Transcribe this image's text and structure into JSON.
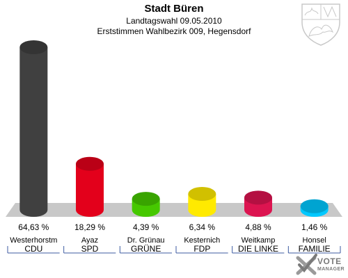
{
  "header": {
    "title": "Stadt Büren",
    "line1": "Landtagswahl 09.05.2010",
    "line2": "Erststimmen Wahlbezirk 009, Hegensdorf"
  },
  "branding": {
    "line1": "VOTE",
    "line2": "MANAGER"
  },
  "colors": {
    "axis": "#c8c8c8",
    "tick_line": "#3c5aa0"
  },
  "chart_data": {
    "type": "bar",
    "categories": [
      "CDU",
      "SPD",
      "GRÜNE",
      "FDP",
      "DIE LINKE",
      "FAMILIE"
    ],
    "candidates": [
      "Westerhorstm",
      "Ayaz",
      "Dr. Grünau",
      "Kesternich",
      "Weitkamp",
      "Honsel"
    ],
    "values": [
      64.63,
      18.29,
      4.39,
      6.34,
      4.88,
      1.46
    ],
    "value_labels": [
      "64,63 %",
      "18,29 %",
      "4,39 %",
      "6,34 %",
      "4,88 %",
      "1,46 %"
    ],
    "colors": [
      "#404040",
      "#e3001b",
      "#46c800",
      "#ffea00",
      "#dc1450",
      "#00c8ff"
    ],
    "ylim": [
      0,
      64.63
    ],
    "unit": "%"
  }
}
